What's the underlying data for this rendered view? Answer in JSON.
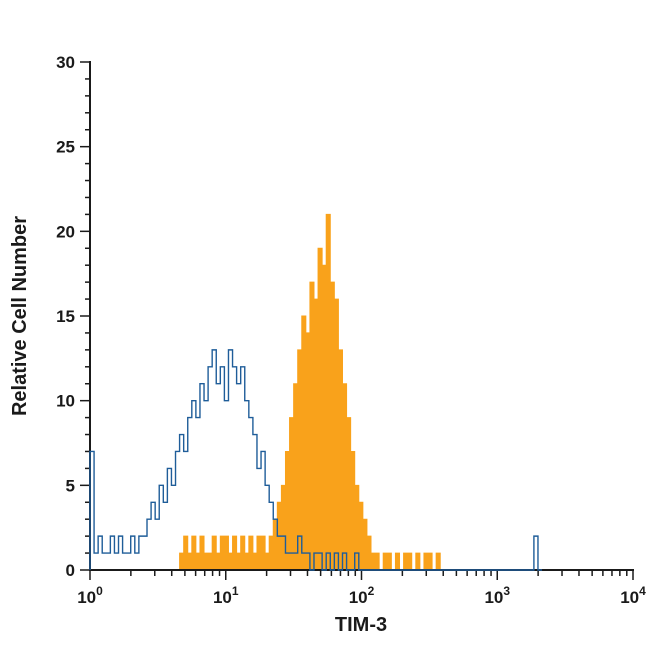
{
  "figure": {
    "background": "#ffffff"
  },
  "chart_data": {
    "type": "area",
    "subtype": "flow-cytometry-histogram-overlay",
    "title": "",
    "xlabel": "TIM-3",
    "ylabel": "Relative Cell Number",
    "x_scale": "log10",
    "xlim_log10": [
      0,
      4
    ],
    "ylim": [
      0,
      30
    ],
    "grid": false,
    "legend": "none",
    "colors": {
      "axis": "#1a1a1a",
      "blue_outline": "#1f5d99",
      "orange_fill": "#f9a21b"
    },
    "y_major_step": 5,
    "y_minor_step": 1,
    "y_tick_labels": [
      "0",
      "5",
      "10",
      "15",
      "20",
      "25",
      "30"
    ],
    "x_major_ticks": [
      {
        "label": "10",
        "exp": "0"
      },
      {
        "label": "10",
        "exp": "1"
      },
      {
        "label": "10",
        "exp": "2"
      },
      {
        "label": "10",
        "exp": "3"
      },
      {
        "label": "10",
        "exp": "4"
      }
    ],
    "x_minor_multiples": [
      2,
      3,
      4,
      5,
      6,
      7,
      8,
      9
    ],
    "series": [
      {
        "name": "orange-filled-histogram",
        "style": "filled",
        "color": "#f9a21b",
        "start_log10": 0.66,
        "bin_width_log10": 0.03,
        "peak_value": 21,
        "peak_x_approx": 55,
        "values": [
          1,
          2,
          1,
          2,
          1,
          2,
          1,
          1,
          2,
          1,
          2,
          2,
          1,
          2,
          1,
          2,
          1,
          2,
          1,
          2,
          2,
          1,
          2,
          3,
          4,
          5,
          7,
          9,
          11,
          13,
          15,
          14,
          17,
          16,
          19,
          18,
          21,
          17,
          16,
          13,
          11,
          9,
          7,
          5,
          4,
          3,
          2,
          1,
          1,
          0,
          1,
          1,
          0,
          1,
          0,
          1,
          1,
          0,
          1,
          0,
          1,
          1,
          0,
          1,
          0,
          0
        ]
      },
      {
        "name": "blue-outline-histogram",
        "style": "outline",
        "color": "#1f5d99",
        "start_log10": 0,
        "bin_width_log10": 0.03,
        "peak_value": 13,
        "peak_x_approx": 9,
        "values": [
          7,
          1,
          2,
          1,
          1,
          2,
          1,
          2,
          1,
          1,
          2,
          1,
          2,
          2,
          3,
          4,
          3,
          5,
          4,
          6,
          5,
          7,
          8,
          7,
          9,
          10,
          9,
          11,
          10,
          12,
          13,
          11,
          12,
          10,
          13,
          12,
          11,
          12,
          10,
          9,
          8,
          6,
          7,
          5,
          4,
          3,
          2,
          2,
          1,
          1,
          1,
          2,
          1,
          1,
          0,
          1,
          1,
          0,
          1,
          0,
          1,
          0,
          1,
          0,
          0,
          1,
          0,
          0,
          0,
          0,
          0,
          0,
          0,
          0,
          0,
          0,
          0,
          0,
          0,
          0,
          0,
          0,
          0,
          0,
          0,
          0,
          0,
          0,
          0,
          0,
          0,
          0,
          0,
          0,
          0,
          0,
          0,
          0,
          0,
          0,
          0,
          0,
          0,
          0,
          0,
          0,
          0,
          0,
          0,
          2,
          0
        ]
      }
    ]
  }
}
